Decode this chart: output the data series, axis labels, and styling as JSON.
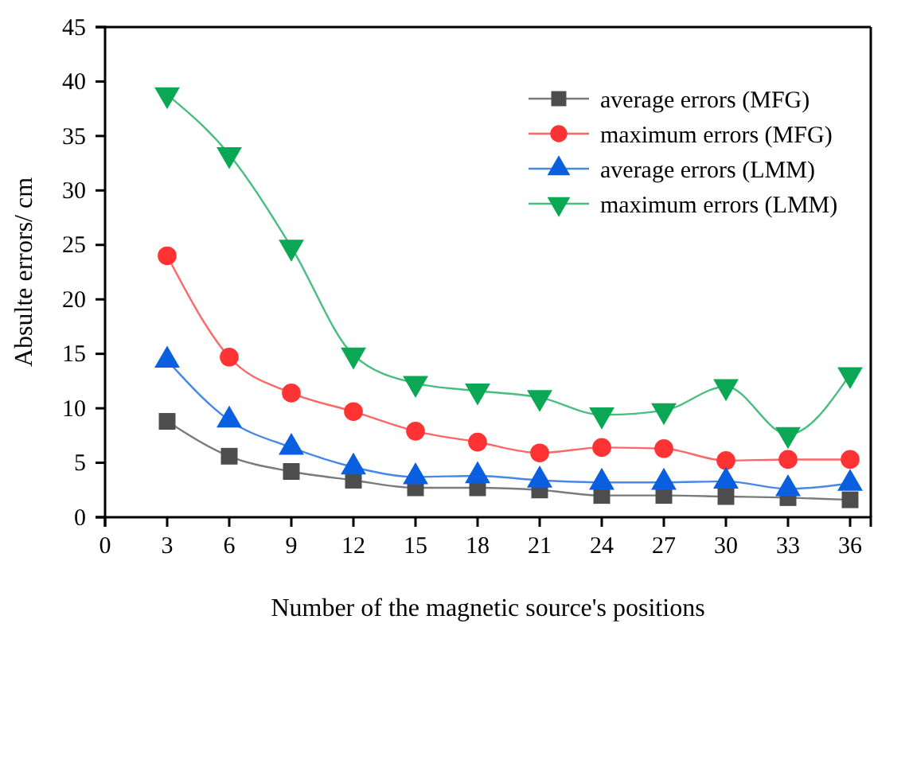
{
  "chart_data": {
    "type": "line",
    "xlabel": "Number of the magnetic source's positions",
    "ylabel": "Absulte errors/ cm",
    "x": [
      3,
      6,
      9,
      12,
      15,
      18,
      21,
      24,
      27,
      30,
      33,
      36
    ],
    "xlim": [
      0,
      37
    ],
    "xticks": [
      0,
      3,
      6,
      9,
      12,
      15,
      18,
      21,
      24,
      27,
      30,
      33,
      36
    ],
    "ylim": [
      0,
      45
    ],
    "yticks": [
      0,
      5,
      10,
      15,
      20,
      25,
      30,
      35,
      40,
      45
    ],
    "grid": false,
    "legend": "top right",
    "series": [
      {
        "name": "average errors (MFG)",
        "color": "#4d4d4d",
        "marker": "square",
        "values": [
          8.8,
          5.6,
          4.2,
          3.4,
          2.7,
          2.7,
          2.5,
          2.0,
          2.0,
          1.9,
          1.8,
          1.6
        ]
      },
      {
        "name": "maximum errors (MFG)",
        "color": "#ff3333",
        "marker": "circle",
        "values": [
          24.0,
          14.7,
          11.4,
          9.7,
          7.9,
          6.9,
          5.9,
          6.4,
          6.3,
          5.2,
          5.3,
          5.3
        ]
      },
      {
        "name": "average errors (LMM)",
        "color": "#0a5fe0",
        "marker": "triangle",
        "values": [
          14.4,
          8.9,
          6.4,
          4.6,
          3.7,
          3.8,
          3.4,
          3.2,
          3.2,
          3.3,
          2.6,
          3.1
        ]
      },
      {
        "name": "maximum errors (LMM)",
        "color": "#0aa855",
        "marker": "triangle-down",
        "values": [
          38.8,
          33.3,
          24.8,
          14.9,
          12.3,
          11.6,
          11.0,
          9.4,
          9.8,
          12.0,
          7.6,
          13.1
        ]
      }
    ]
  }
}
